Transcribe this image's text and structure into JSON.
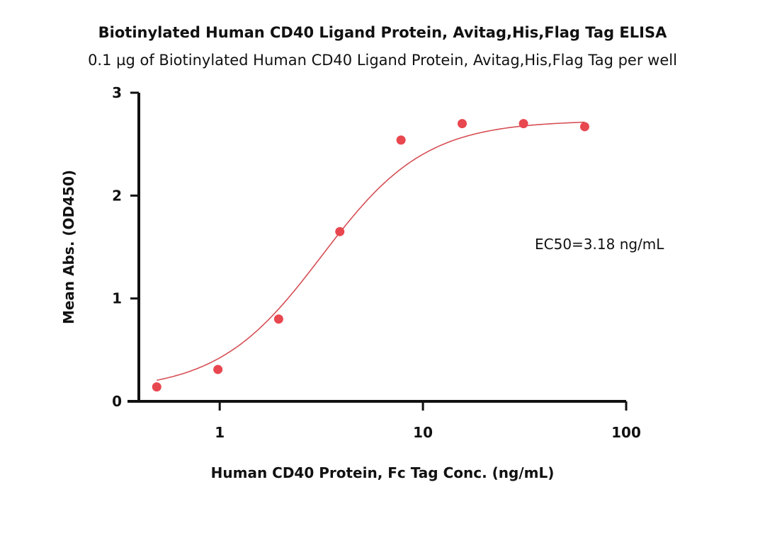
{
  "chart_data": {
    "type": "scatter",
    "title": "Biotinylated Human CD40 Ligand Protein, Avitag,His,Flag Tag ELISA",
    "subtitle": "0.1 µg of Biotinylated Human CD40 Ligand Protein, Avitag,His,Flag Tag per well",
    "xlabel": "Human CD40 Protein, Fc Tag Conc. (ng/mL)",
    "ylabel": "Mean Abs. (OD450)",
    "x_scale": "log",
    "xlim": [
      0.4,
      100
    ],
    "ylim": [
      0,
      3
    ],
    "x_ticks": [
      1,
      10,
      100
    ],
    "x_tick_labels": [
      "1",
      "10",
      "100"
    ],
    "y_ticks": [
      0,
      1,
      2,
      3
    ],
    "y_tick_labels": [
      "0",
      "1",
      "2",
      "3"
    ],
    "grid": false,
    "annotation": "EC50=3.18 ng/mL",
    "series": [
      {
        "x": [
          0.49,
          0.98,
          1.95,
          3.9,
          7.8,
          15.6,
          31.25,
          62.5
        ],
        "y": [
          0.14,
          0.31,
          0.8,
          1.65,
          2.54,
          2.7,
          2.7,
          2.67
        ],
        "color": "#e8474f",
        "fit": {
          "model": "4PL",
          "bottom": 0.1,
          "top": 2.73,
          "ec50": 3.18,
          "hill": 1.7
        }
      }
    ]
  }
}
